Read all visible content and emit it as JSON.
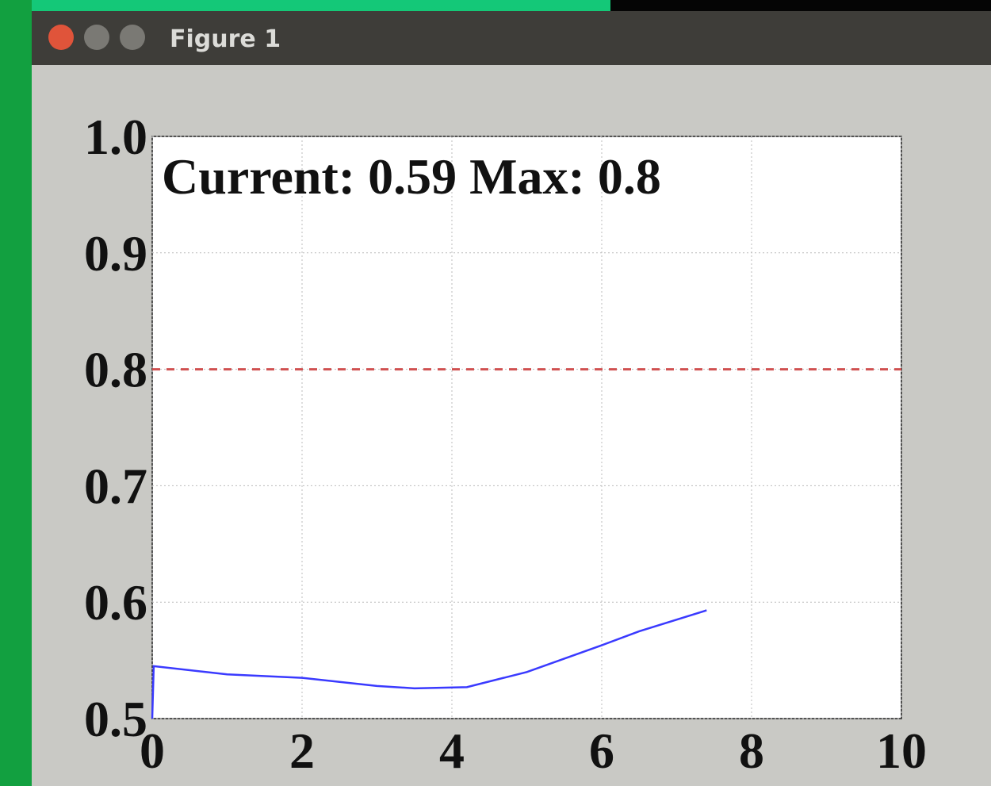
{
  "window": {
    "title": "Figure 1"
  },
  "chart_data": {
    "type": "line",
    "annotation": "Current: 0.59 Max: 0.8",
    "x": [
      0,
      0.02,
      1,
      2,
      3,
      3.5,
      4.2,
      5,
      6,
      6.5,
      7.4
    ],
    "series": [
      {
        "color": "#3a3aff",
        "values": [
          0.5,
          0.545,
          0.538,
          0.535,
          0.528,
          0.526,
          0.527,
          0.54,
          0.563,
          0.575,
          0.593
        ]
      }
    ],
    "hline": {
      "value": 0.8,
      "color": "#d05050"
    },
    "xlim": [
      0,
      10
    ],
    "xticks": [
      0,
      2,
      4,
      6,
      8,
      10
    ],
    "ylim": [
      0.5,
      1.0
    ],
    "yticks": [
      {
        "value": 0.5,
        "label": "0.5"
      },
      {
        "value": 0.6,
        "label": "0.6"
      },
      {
        "value": 0.7,
        "label": "0.7"
      },
      {
        "value": 0.8,
        "label": "0.8"
      },
      {
        "value": 0.9,
        "label": "0.9"
      },
      {
        "value": 1.0,
        "label": "1.0"
      }
    ],
    "grid": true
  }
}
